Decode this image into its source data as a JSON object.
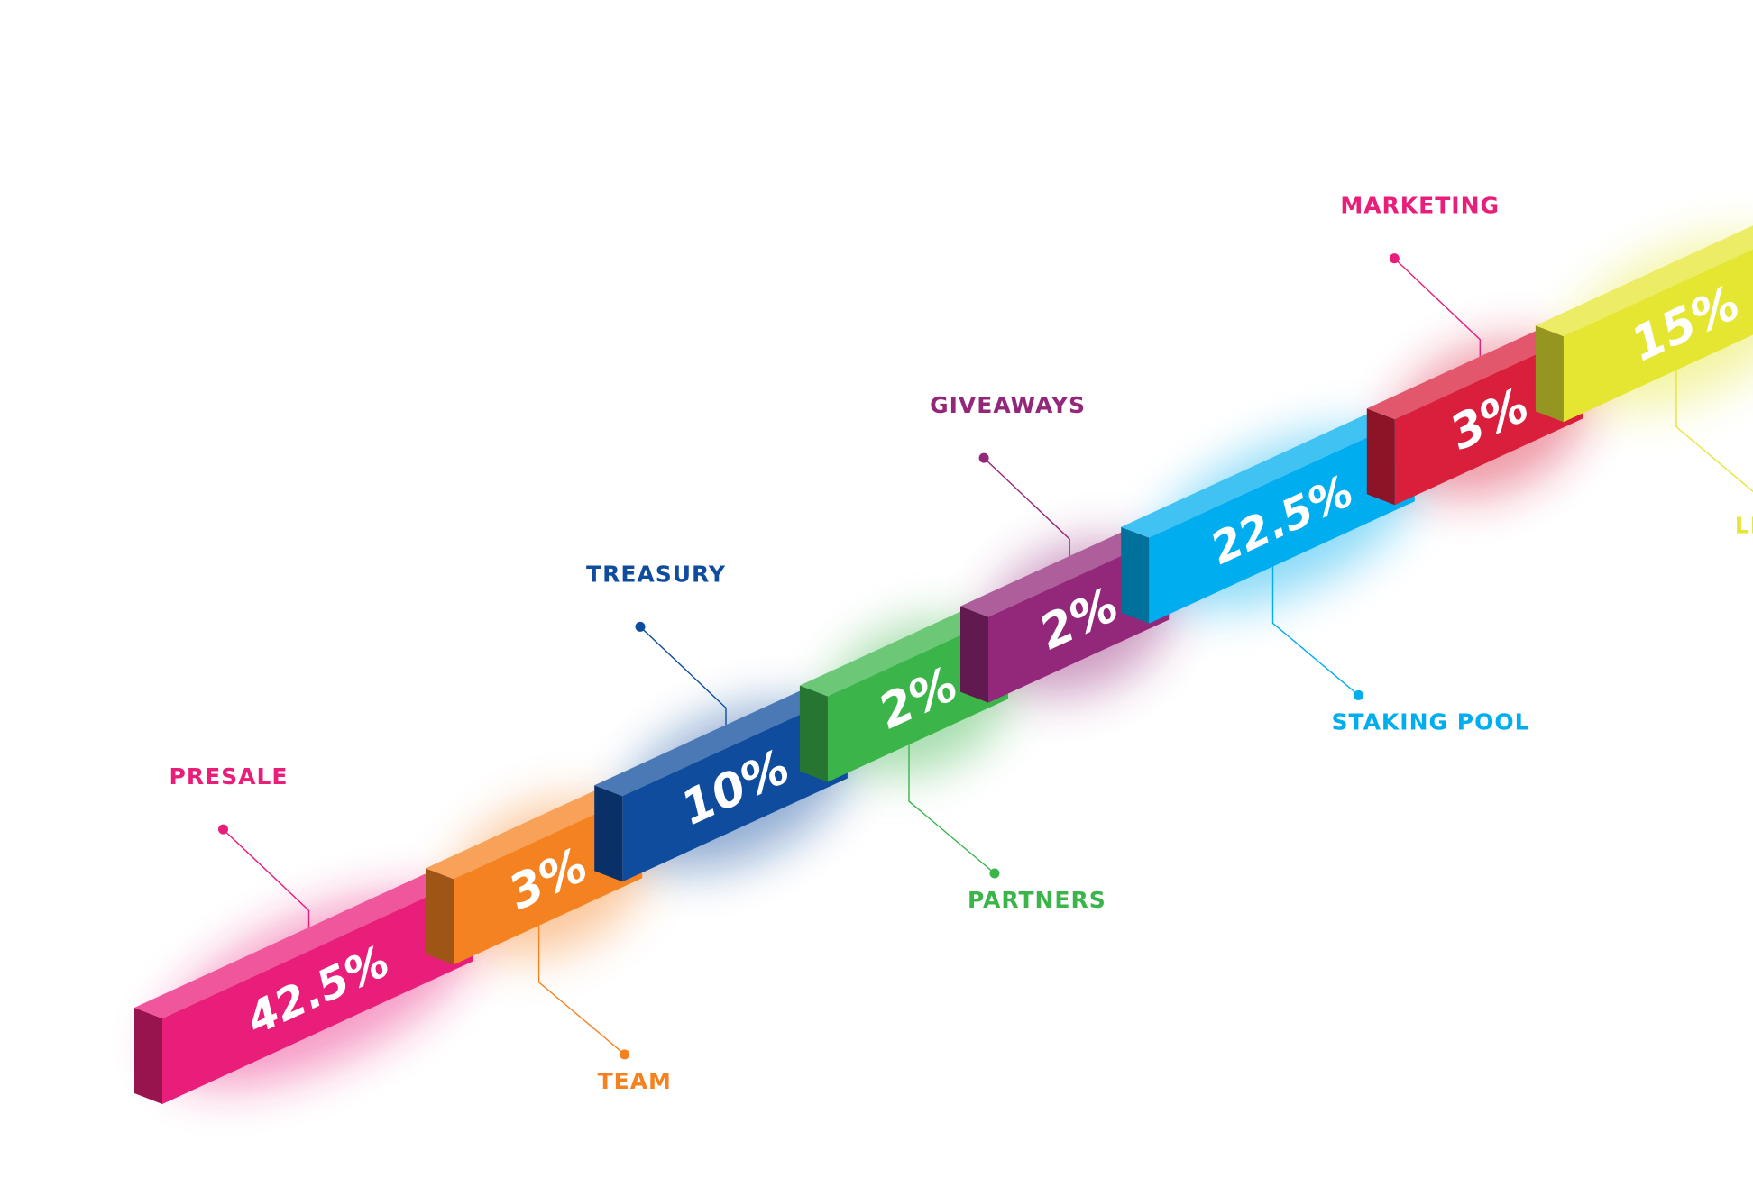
{
  "chart_data": {
    "type": "bar",
    "title": "",
    "categories": [
      "PRESALE",
      "TEAM",
      "TREASURY",
      "PARTNERS",
      "GIVEAWAYS",
      "STAKING POOL",
      "MARKETING",
      "LIQUIDITY"
    ],
    "values": [
      42.5,
      3,
      10,
      2,
      2,
      22.5,
      3,
      15
    ],
    "value_labels": [
      "42.5%",
      "3%",
      "10%",
      "2%",
      "2%",
      "22.5%",
      "3%",
      "15%"
    ],
    "colors": [
      "#e91e7a",
      "#f58220",
      "#0f4c9e",
      "#3bb44a",
      "#93287a",
      "#00aeef",
      "#d91f3b",
      "#e5e632"
    ],
    "label_colors": [
      "#e91e7a",
      "#f58220",
      "#0f4c9e",
      "#3bb44a",
      "#93287a",
      "#00aeef",
      "#e91e7a",
      "#e5e632"
    ],
    "label_positions": [
      "above",
      "below",
      "above",
      "below",
      "above",
      "below",
      "above",
      "below"
    ]
  }
}
